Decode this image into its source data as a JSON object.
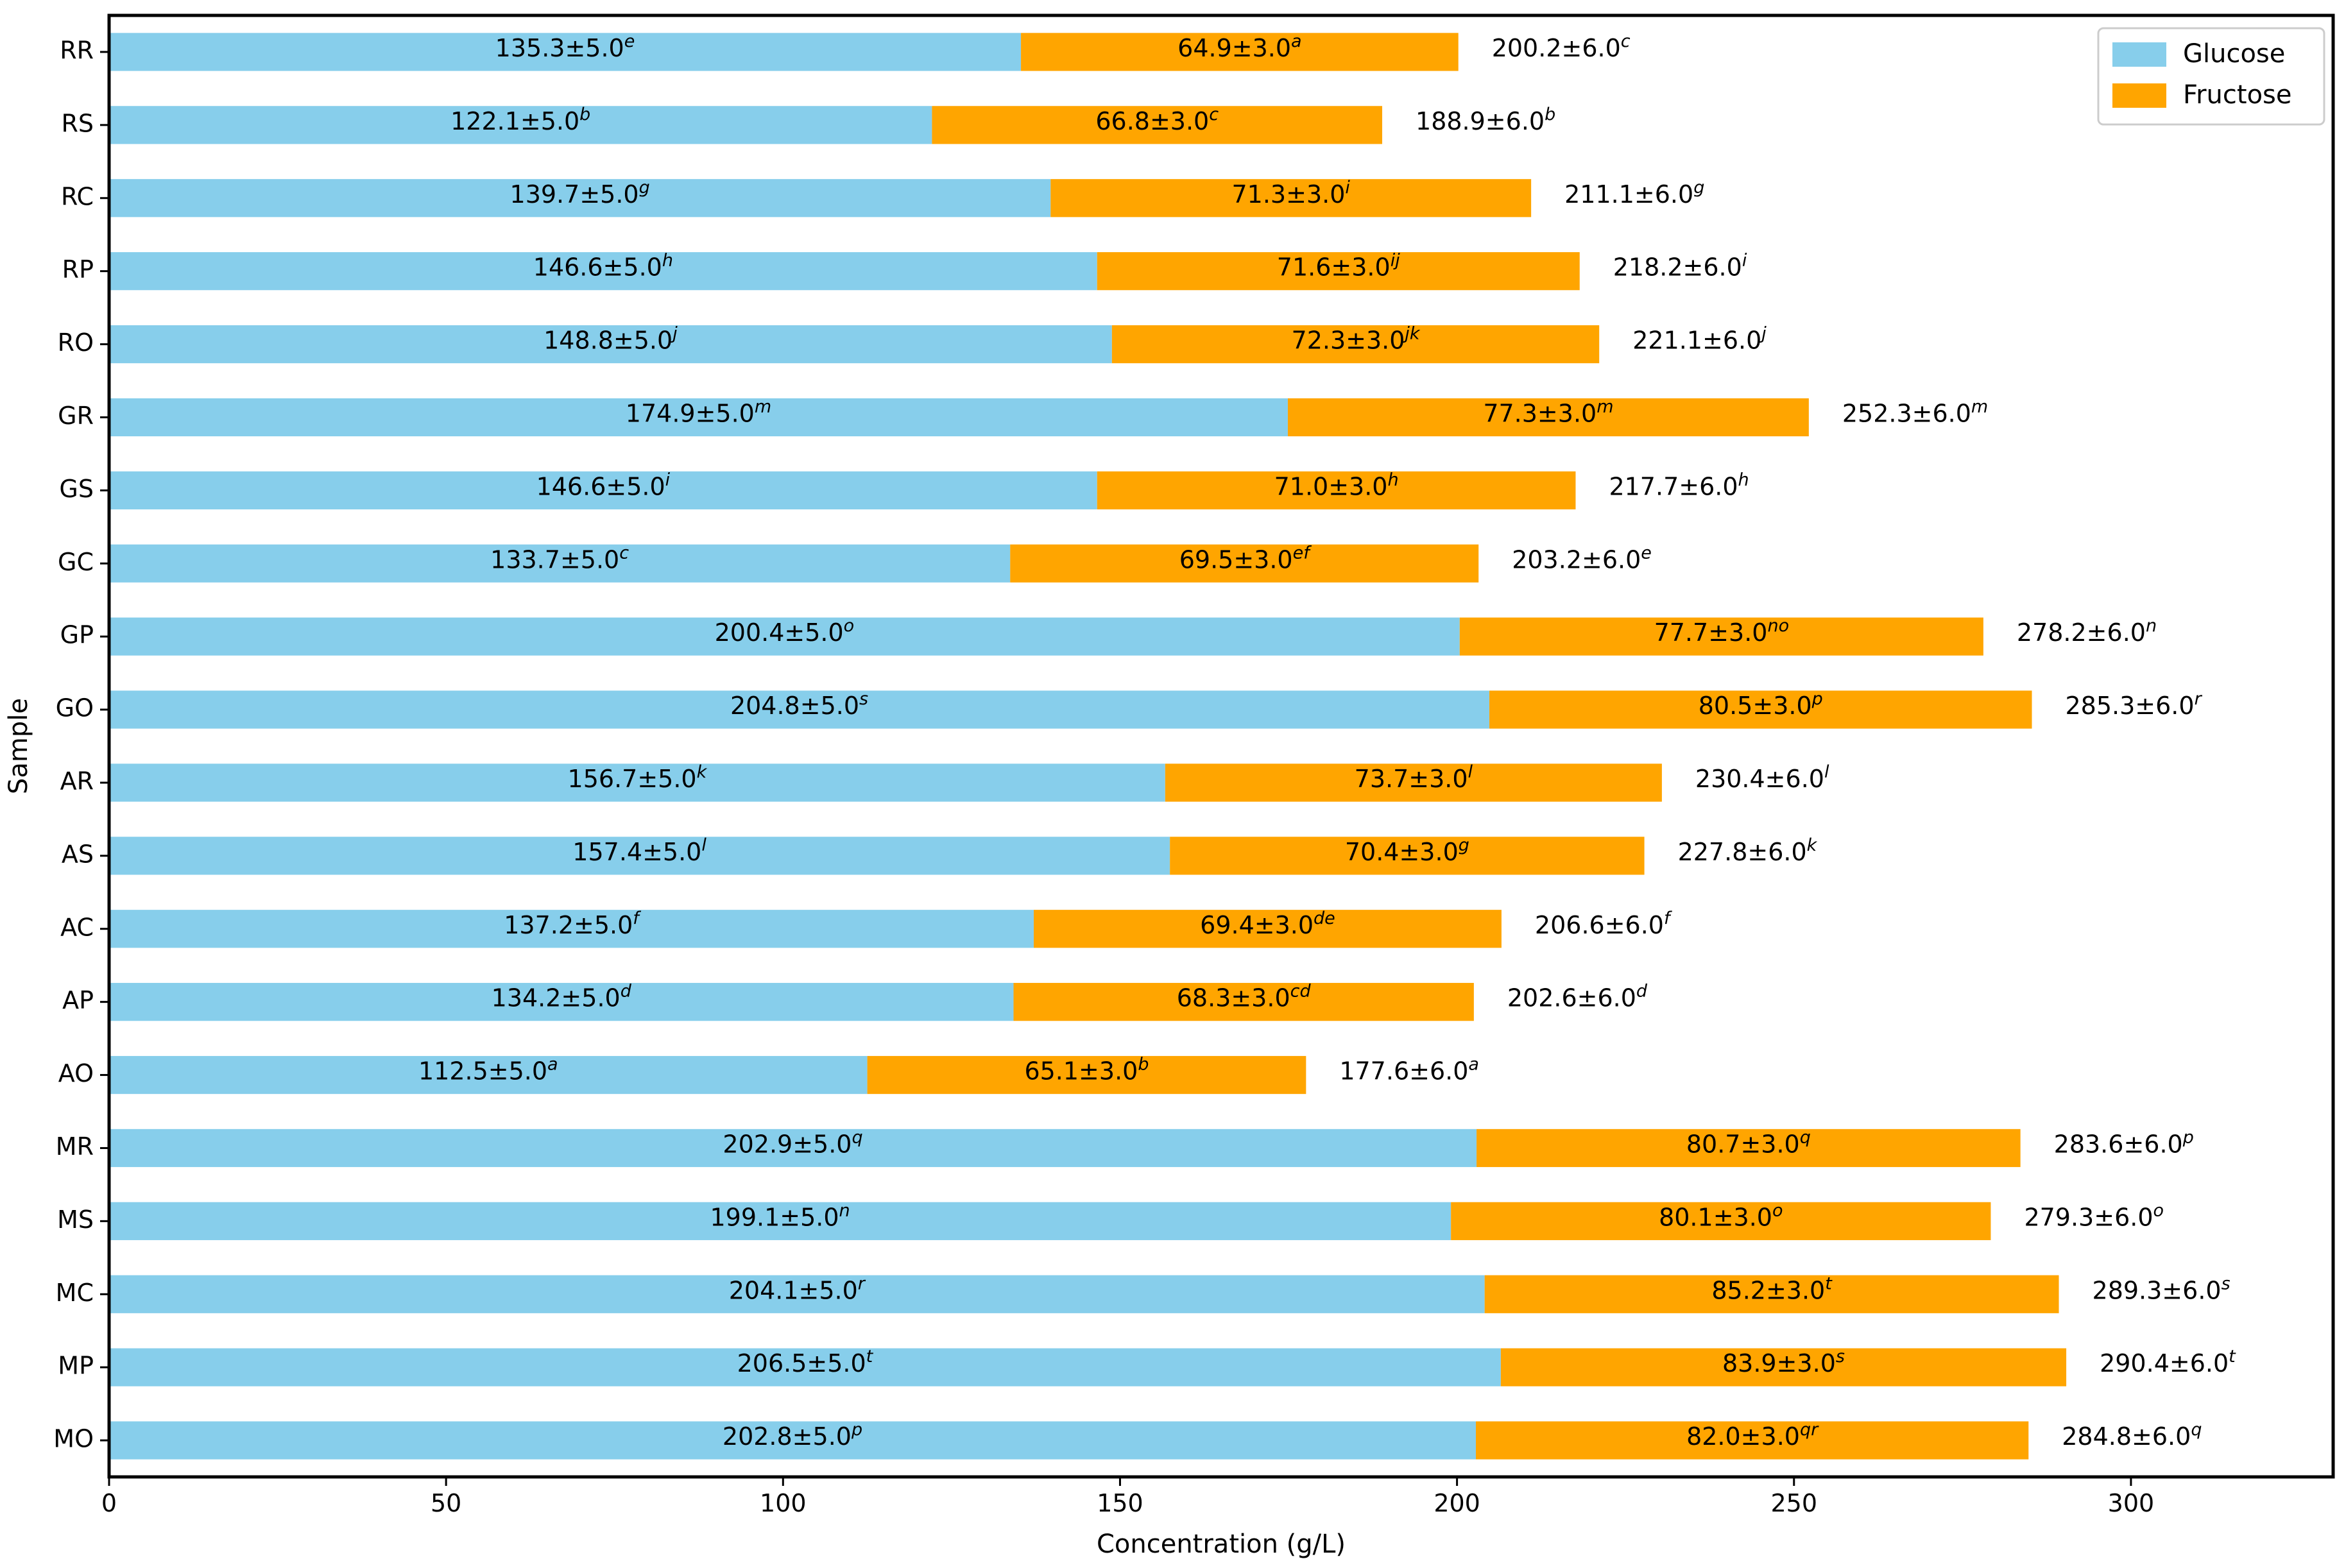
{
  "chart_data": {
    "type": "bar",
    "orientation": "horizontal",
    "stacked": true,
    "xlabel": "Concentration (g/L)",
    "ylabel": "Sample",
    "xlim": [
      0,
      330
    ],
    "xticks": [
      0,
      50,
      100,
      150,
      200,
      250,
      300
    ],
    "grid": false,
    "legend_position": "top-right",
    "categories": [
      "RR",
      "RS",
      "RC",
      "RP",
      "RO",
      "GR",
      "GS",
      "GC",
      "GP",
      "GO",
      "AR",
      "AS",
      "AC",
      "AP",
      "AO",
      "MR",
      "MS",
      "MC",
      "MP",
      "MO"
    ],
    "series": [
      {
        "name": "Glucose",
        "color": "#87ceeb",
        "values": [
          135.3,
          122.1,
          139.7,
          146.6,
          148.8,
          174.9,
          146.6,
          133.7,
          200.4,
          204.8,
          156.7,
          157.4,
          137.2,
          134.2,
          112.5,
          202.9,
          199.1,
          204.1,
          206.5,
          202.8
        ],
        "labels": [
          "135.3±5.0",
          "122.1±5.0",
          "139.7±5.0",
          "146.6±5.0",
          "148.8±5.0",
          "174.9±5.0",
          "146.6±5.0",
          "133.7±5.0",
          "200.4±5.0",
          "204.8±5.0",
          "156.7±5.0",
          "157.4±5.0",
          "137.2±5.0",
          "134.2±5.0",
          "112.5±5.0",
          "202.9±5.0",
          "199.1±5.0",
          "204.1±5.0",
          "206.5±5.0",
          "202.8±5.0"
        ],
        "superscripts": [
          "e",
          "b",
          "g",
          "h",
          "j",
          "m",
          "i",
          "c",
          "o",
          "s",
          "k",
          "l",
          "f",
          "d",
          "a",
          "q",
          "n",
          "r",
          "t",
          "p"
        ]
      },
      {
        "name": "Fructose",
        "color": "#ffa500",
        "values": [
          64.9,
          66.8,
          71.3,
          71.6,
          72.3,
          77.3,
          71.0,
          69.5,
          77.7,
          80.5,
          73.7,
          70.4,
          69.4,
          68.3,
          65.1,
          80.7,
          80.1,
          85.2,
          83.9,
          82.0
        ],
        "labels": [
          "64.9±3.0",
          "66.8±3.0",
          "71.3±3.0",
          "71.6±3.0",
          "72.3±3.0",
          "77.3±3.0",
          "71.0±3.0",
          "69.5±3.0",
          "77.7±3.0",
          "80.5±3.0",
          "73.7±3.0",
          "70.4±3.0",
          "69.4±3.0",
          "68.3±3.0",
          "65.1±3.0",
          "80.7±3.0",
          "80.1±3.0",
          "85.2±3.0",
          "83.9±3.0",
          "82.0±3.0"
        ],
        "superscripts": [
          "a",
          "c",
          "i",
          "ij",
          "jk",
          "m",
          "h",
          "ef",
          "no",
          "p",
          "l",
          "g",
          "de",
          "cd",
          "b",
          "q",
          "o",
          "t",
          "s",
          "qr"
        ]
      }
    ],
    "totals": {
      "values": [
        200.2,
        188.9,
        211.1,
        218.2,
        221.1,
        252.3,
        217.7,
        203.2,
        278.2,
        285.3,
        230.4,
        227.8,
        206.6,
        202.6,
        177.6,
        283.6,
        279.3,
        289.3,
        290.4,
        284.8
      ],
      "labels": [
        "200.2±6.0",
        "188.9±6.0",
        "211.1±6.0",
        "218.2±6.0",
        "221.1±6.0",
        "252.3±6.0",
        "217.7±6.0",
        "203.2±6.0",
        "278.2±6.0",
        "285.3±6.0",
        "230.4±6.0",
        "227.8±6.0",
        "206.6±6.0",
        "202.6±6.0",
        "177.6±6.0",
        "283.6±6.0",
        "279.3±6.0",
        "289.3±6.0",
        "290.4±6.0",
        "284.8±6.0"
      ],
      "superscripts": [
        "c",
        "b",
        "g",
        "i",
        "j",
        "m",
        "h",
        "e",
        "n",
        "r",
        "l",
        "k",
        "f",
        "d",
        "a",
        "p",
        "o",
        "s",
        "t",
        "q"
      ]
    }
  }
}
